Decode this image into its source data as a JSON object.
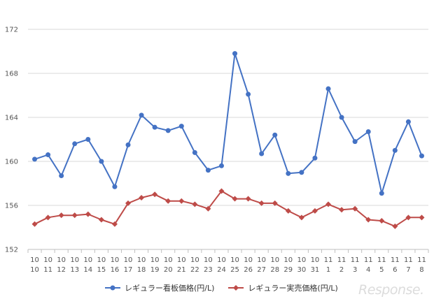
{
  "chart_data": {
    "type": "line",
    "title": "",
    "xlabel": "",
    "ylabel": "",
    "ylim": [
      152,
      172
    ],
    "yticks": [
      152,
      156,
      160,
      164,
      168,
      172
    ],
    "grid": true,
    "legend_position": "bottom",
    "categories": [
      {
        "month": "10",
        "day": "10"
      },
      {
        "month": "10",
        "day": "11"
      },
      {
        "month": "10",
        "day": "12"
      },
      {
        "month": "10",
        "day": "13"
      },
      {
        "month": "10",
        "day": "14"
      },
      {
        "month": "10",
        "day": "15"
      },
      {
        "month": "10",
        "day": "16"
      },
      {
        "month": "10",
        "day": "17"
      },
      {
        "month": "10",
        "day": "18"
      },
      {
        "month": "10",
        "day": "19"
      },
      {
        "month": "10",
        "day": "20"
      },
      {
        "month": "10",
        "day": "21"
      },
      {
        "month": "10",
        "day": "22"
      },
      {
        "month": "10",
        "day": "23"
      },
      {
        "month": "10",
        "day": "24"
      },
      {
        "month": "10",
        "day": "25"
      },
      {
        "month": "10",
        "day": "26"
      },
      {
        "month": "10",
        "day": "27"
      },
      {
        "month": "10",
        "day": "28"
      },
      {
        "month": "10",
        "day": "29"
      },
      {
        "month": "10",
        "day": "30"
      },
      {
        "month": "10",
        "day": "31"
      },
      {
        "month": "11",
        "day": "1"
      },
      {
        "month": "11",
        "day": "2"
      },
      {
        "month": "11",
        "day": "3"
      },
      {
        "month": "11",
        "day": "4"
      },
      {
        "month": "11",
        "day": "5"
      },
      {
        "month": "11",
        "day": "6"
      },
      {
        "month": "11",
        "day": "7"
      },
      {
        "month": "11",
        "day": "8"
      }
    ],
    "series": [
      {
        "name": "レギュラー看板価格(円/L)",
        "color": "#4472c4",
        "marker": "circle",
        "values": [
          160.2,
          160.6,
          158.7,
          161.6,
          162.0,
          160.0,
          157.7,
          161.5,
          164.2,
          163.1,
          162.8,
          163.2,
          160.8,
          159.2,
          159.6,
          169.8,
          166.1,
          160.7,
          162.4,
          158.9,
          159.0,
          160.3,
          166.6,
          164.0,
          161.8,
          162.7,
          157.1,
          161.0,
          163.6,
          160.5
        ]
      },
      {
        "name": "レギュラー実売価格(円/L)",
        "color": "#be4b48",
        "marker": "diamond",
        "values": [
          154.3,
          154.9,
          155.1,
          155.1,
          155.2,
          154.7,
          154.3,
          156.2,
          156.7,
          157.0,
          156.4,
          156.4,
          156.1,
          155.7,
          157.3,
          156.6,
          156.6,
          156.2,
          156.2,
          155.5,
          154.9,
          155.5,
          156.1,
          155.6,
          155.7,
          154.7,
          154.6,
          154.1,
          154.9,
          154.9
        ]
      }
    ]
  },
  "watermark": {
    "text": "Response."
  }
}
